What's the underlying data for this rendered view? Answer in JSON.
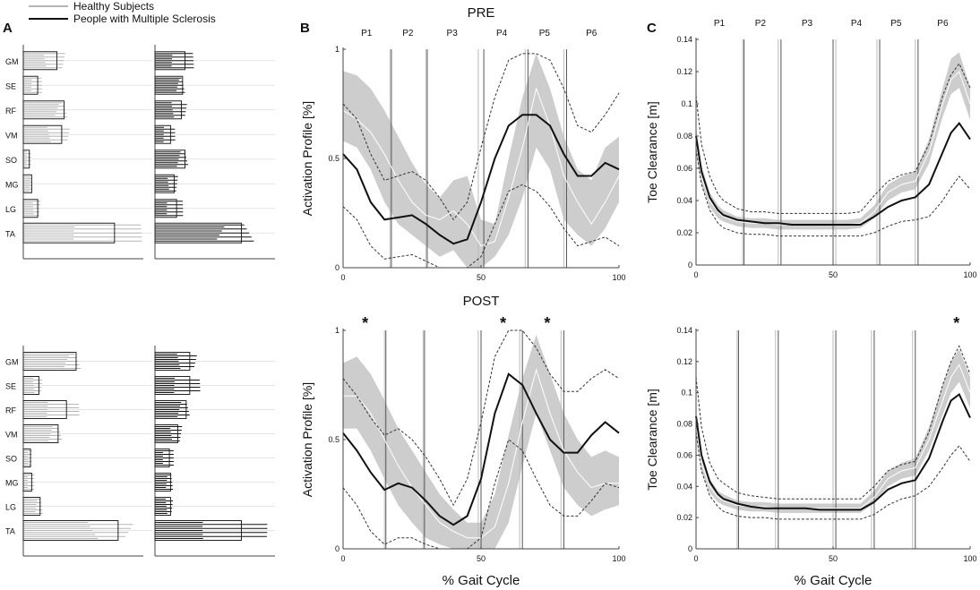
{
  "legend": {
    "healthy_label": "Healthy Subjects",
    "ms_label": "People with Multiple Sclerosis",
    "healthy_color": "#b5b5b5",
    "ms_color": "#111111"
  },
  "panel_letters": {
    "a": "A",
    "b": "B",
    "c": "C"
  },
  "chart_data": [
    {
      "type": "bar",
      "panel": "A-top",
      "description_label": "muscle synergy weights",
      "muscles": [
        "GM",
        "SE",
        "RF",
        "VM",
        "SO",
        "MG",
        "LG",
        "TA"
      ],
      "series": [
        {
          "name": "Healthy Subjects",
          "values": [
            0.28,
            0.12,
            0.34,
            0.32,
            0.05,
            0.07,
            0.12,
            0.76
          ]
        },
        {
          "name": "People with Multiple Sclerosis",
          "values": [
            0.25,
            0.23,
            0.22,
            0.13,
            0.25,
            0.16,
            0.18,
            0.72
          ]
        }
      ]
    },
    {
      "type": "bar",
      "panel": "A-bottom",
      "description_label": "muscle synergy weights",
      "muscles": [
        "GM",
        "SE",
        "RF",
        "VM",
        "SO",
        "MG",
        "LG",
        "TA"
      ],
      "series": [
        {
          "name": "Healthy Subjects",
          "values": [
            0.44,
            0.13,
            0.36,
            0.29,
            0.06,
            0.07,
            0.14,
            0.79
          ]
        },
        {
          "name": "People with Multiple Sclerosis",
          "values": [
            0.29,
            0.29,
            0.26,
            0.19,
            0.12,
            0.13,
            0.13,
            0.72
          ]
        }
      ]
    },
    {
      "type": "line",
      "panel": "B-PRE",
      "title": "PRE",
      "xlabel": "",
      "ylabel": "Activation Profile [%]",
      "xlim": [
        0,
        100
      ],
      "ylim": [
        0,
        1
      ],
      "xticks": [
        0,
        50,
        100
      ],
      "yticks": [
        0,
        0.5,
        1
      ],
      "phases": [
        "P1",
        "P2",
        "P3",
        "P4",
        "P5",
        "P6"
      ],
      "phase_boundaries_healthy": [
        17,
        30,
        49,
        66,
        80
      ],
      "phase_boundaries_ms": [
        17.5,
        30.5,
        51,
        67,
        81
      ],
      "x": [
        0,
        5,
        10,
        15,
        20,
        25,
        30,
        35,
        40,
        45,
        50,
        55,
        60,
        65,
        70,
        75,
        80,
        85,
        90,
        95,
        100
      ],
      "series": [
        {
          "name": "Healthy Subjects mean",
          "values": [
            0.72,
            0.68,
            0.62,
            0.52,
            0.4,
            0.3,
            0.24,
            0.22,
            0.26,
            0.2,
            0.1,
            0.12,
            0.32,
            0.55,
            0.82,
            0.65,
            0.42,
            0.3,
            0.2,
            0.3,
            0.42
          ]
        },
        {
          "name": "Healthy Subjects sd low",
          "values": [
            0.58,
            0.55,
            0.45,
            0.3,
            0.2,
            0.15,
            0.1,
            0.05,
            0.08,
            0.0,
            0.0,
            0.05,
            0.15,
            0.32,
            0.55,
            0.45,
            0.22,
            0.15,
            0.1,
            0.18,
            0.3
          ]
        },
        {
          "name": "Healthy Subjects sd high",
          "values": [
            0.9,
            0.88,
            0.82,
            0.72,
            0.6,
            0.48,
            0.38,
            0.32,
            0.4,
            0.42,
            0.22,
            0.2,
            0.5,
            0.78,
            0.98,
            0.82,
            0.6,
            0.45,
            0.4,
            0.55,
            0.6
          ]
        },
        {
          "name": "People with Multiple Sclerosis mean",
          "values": [
            0.52,
            0.45,
            0.3,
            0.22,
            0.23,
            0.24,
            0.2,
            0.15,
            0.11,
            0.13,
            0.3,
            0.5,
            0.65,
            0.7,
            0.7,
            0.65,
            0.52,
            0.42,
            0.42,
            0.48,
            0.45
          ]
        },
        {
          "name": "People with Multiple Sclerosis sd low",
          "values": [
            0.28,
            0.22,
            0.1,
            0.04,
            0.05,
            0.06,
            0.03,
            0.0,
            0.0,
            0.0,
            0.05,
            0.2,
            0.35,
            0.38,
            0.35,
            0.28,
            0.18,
            0.1,
            0.12,
            0.14,
            0.1
          ]
        },
        {
          "name": "People with Multiple Sclerosis sd high",
          "values": [
            0.75,
            0.68,
            0.52,
            0.4,
            0.42,
            0.44,
            0.4,
            0.32,
            0.22,
            0.3,
            0.55,
            0.78,
            0.95,
            0.98,
            0.98,
            0.95,
            0.82,
            0.65,
            0.62,
            0.7,
            0.8
          ]
        }
      ],
      "significance": []
    },
    {
      "type": "line",
      "panel": "B-POST",
      "title": "POST",
      "xlabel": "% Gait Cycle",
      "ylabel": "Activation Profile [%]",
      "xlim": [
        0,
        100
      ],
      "ylim": [
        0,
        1
      ],
      "xticks": [
        0,
        50,
        100
      ],
      "yticks": [
        0,
        0.5,
        1
      ],
      "phases": [],
      "phase_boundaries_healthy": [
        15,
        29,
        49,
        64,
        79
      ],
      "phase_boundaries_ms": [
        15.5,
        29.5,
        50,
        65,
        80
      ],
      "x": [
        0,
        5,
        10,
        15,
        20,
        25,
        30,
        35,
        40,
        45,
        50,
        55,
        60,
        65,
        70,
        75,
        80,
        85,
        90,
        95,
        100
      ],
      "series": [
        {
          "name": "Healthy Subjects mean",
          "values": [
            0.7,
            0.7,
            0.62,
            0.5,
            0.38,
            0.28,
            0.2,
            0.12,
            0.08,
            0.05,
            0.05,
            0.1,
            0.3,
            0.58,
            0.82,
            0.62,
            0.45,
            0.35,
            0.28,
            0.3,
            0.3
          ]
        },
        {
          "name": "Healthy Subjects sd low",
          "values": [
            0.55,
            0.55,
            0.45,
            0.32,
            0.2,
            0.12,
            0.05,
            0.02,
            0.0,
            0.0,
            0.0,
            0.0,
            0.12,
            0.38,
            0.62,
            0.45,
            0.28,
            0.2,
            0.15,
            0.18,
            0.2
          ]
        },
        {
          "name": "Healthy Subjects sd high",
          "values": [
            0.85,
            0.88,
            0.8,
            0.68,
            0.55,
            0.45,
            0.35,
            0.25,
            0.18,
            0.12,
            0.12,
            0.25,
            0.52,
            0.78,
            0.98,
            0.8,
            0.62,
            0.5,
            0.42,
            0.45,
            0.42
          ]
        },
        {
          "name": "People with Multiple Sclerosis mean",
          "values": [
            0.53,
            0.45,
            0.35,
            0.27,
            0.3,
            0.28,
            0.22,
            0.15,
            0.11,
            0.15,
            0.32,
            0.62,
            0.8,
            0.75,
            0.62,
            0.5,
            0.44,
            0.44,
            0.52,
            0.58,
            0.53
          ]
        },
        {
          "name": "People with Multiple Sclerosis sd low",
          "values": [
            0.28,
            0.2,
            0.08,
            0.02,
            0.05,
            0.05,
            0.02,
            0.0,
            0.0,
            0.0,
            0.05,
            0.3,
            0.5,
            0.45,
            0.32,
            0.2,
            0.15,
            0.15,
            0.22,
            0.3,
            0.28
          ]
        },
        {
          "name": "People with Multiple Sclerosis sd high",
          "values": [
            0.78,
            0.7,
            0.6,
            0.52,
            0.55,
            0.5,
            0.42,
            0.32,
            0.2,
            0.32,
            0.58,
            0.88,
            1.0,
            1.0,
            0.92,
            0.8,
            0.72,
            0.72,
            0.78,
            0.82,
            0.78
          ]
        }
      ],
      "significance": [
        8,
        58,
        74
      ]
    },
    {
      "type": "line",
      "panel": "C-PRE",
      "title": "",
      "xlabel": "",
      "ylabel": "Toe Clearance [m]",
      "xlim": [
        0,
        100
      ],
      "ylim": [
        0,
        0.14
      ],
      "xticks": [
        0,
        50,
        100
      ],
      "yticks": [
        0,
        0.02,
        0.04,
        0.06,
        0.08,
        0.1,
        0.12,
        0.14
      ],
      "phases": [
        "P1",
        "P2",
        "P3",
        "P4",
        "P5",
        "P6"
      ],
      "phase_boundaries_healthy": [
        17,
        30,
        51,
        66,
        80
      ],
      "phase_boundaries_ms": [
        17.5,
        31,
        50,
        67,
        81
      ],
      "x": [
        0,
        2,
        5,
        8,
        10,
        15,
        20,
        25,
        30,
        35,
        40,
        45,
        50,
        55,
        60,
        65,
        70,
        75,
        80,
        85,
        90,
        93,
        96,
        100
      ],
      "series": [
        {
          "name": "Healthy Subjects mean",
          "values": [
            0.075,
            0.055,
            0.04,
            0.033,
            0.03,
            0.027,
            0.026,
            0.026,
            0.025,
            0.025,
            0.025,
            0.025,
            0.025,
            0.025,
            0.026,
            0.033,
            0.045,
            0.05,
            0.052,
            0.07,
            0.1,
            0.115,
            0.12,
            0.1
          ]
        },
        {
          "name": "Healthy Subjects sd low",
          "values": [
            0.07,
            0.05,
            0.036,
            0.029,
            0.027,
            0.024,
            0.023,
            0.023,
            0.022,
            0.022,
            0.022,
            0.022,
            0.022,
            0.022,
            0.023,
            0.029,
            0.04,
            0.045,
            0.047,
            0.063,
            0.092,
            0.106,
            0.11,
            0.09
          ]
        },
        {
          "name": "Healthy Subjects sd high",
          "values": [
            0.085,
            0.062,
            0.045,
            0.037,
            0.034,
            0.03,
            0.029,
            0.029,
            0.028,
            0.028,
            0.028,
            0.028,
            0.028,
            0.028,
            0.029,
            0.037,
            0.05,
            0.055,
            0.058,
            0.078,
            0.11,
            0.128,
            0.132,
            0.11
          ]
        },
        {
          "name": "People with Multiple Sclerosis mean",
          "values": [
            0.08,
            0.058,
            0.042,
            0.034,
            0.031,
            0.028,
            0.027,
            0.026,
            0.026,
            0.025,
            0.025,
            0.025,
            0.025,
            0.025,
            0.025,
            0.03,
            0.036,
            0.04,
            0.042,
            0.05,
            0.07,
            0.082,
            0.088,
            0.078
          ]
        },
        {
          "name": "People with Multiple Sclerosis sd low",
          "values": [
            0.072,
            0.05,
            0.034,
            0.026,
            0.023,
            0.02,
            0.019,
            0.019,
            0.018,
            0.018,
            0.018,
            0.018,
            0.018,
            0.018,
            0.018,
            0.02,
            0.024,
            0.027,
            0.028,
            0.03,
            0.04,
            0.048,
            0.055,
            0.047
          ]
        },
        {
          "name": "People with Multiple Sclerosis sd high",
          "values": [
            0.105,
            0.075,
            0.055,
            0.044,
            0.04,
            0.035,
            0.033,
            0.033,
            0.032,
            0.032,
            0.032,
            0.032,
            0.032,
            0.032,
            0.033,
            0.043,
            0.052,
            0.056,
            0.058,
            0.075,
            0.105,
            0.118,
            0.125,
            0.11
          ]
        }
      ],
      "significance": []
    },
    {
      "type": "line",
      "panel": "C-POST",
      "title": "",
      "xlabel": "% Gait Cycle",
      "ylabel": "Toe Clearance [m]",
      "xlim": [
        0,
        100
      ],
      "ylim": [
        0,
        0.14
      ],
      "xticks": [
        0,
        50,
        100
      ],
      "yticks": [
        0,
        0.02,
        0.04,
        0.06,
        0.08,
        0.1,
        0.12,
        0.14
      ],
      "phases": [],
      "phase_boundaries_healthy": [
        15,
        29,
        50,
        64,
        79
      ],
      "phase_boundaries_ms": [
        15.5,
        30,
        51,
        65,
        80
      ],
      "x": [
        0,
        2,
        5,
        8,
        10,
        15,
        20,
        25,
        30,
        35,
        40,
        45,
        50,
        55,
        60,
        65,
        70,
        75,
        80,
        85,
        90,
        93,
        96,
        100
      ],
      "series": [
        {
          "name": "Healthy Subjects mean",
          "values": [
            0.078,
            0.055,
            0.04,
            0.033,
            0.031,
            0.028,
            0.027,
            0.027,
            0.026,
            0.026,
            0.026,
            0.026,
            0.026,
            0.026,
            0.026,
            0.033,
            0.045,
            0.05,
            0.052,
            0.07,
            0.095,
            0.11,
            0.118,
            0.1
          ]
        },
        {
          "name": "Healthy Subjects sd low",
          "values": [
            0.072,
            0.05,
            0.036,
            0.03,
            0.028,
            0.025,
            0.024,
            0.024,
            0.023,
            0.023,
            0.023,
            0.023,
            0.023,
            0.023,
            0.023,
            0.029,
            0.04,
            0.045,
            0.047,
            0.063,
            0.086,
            0.1,
            0.107,
            0.09
          ]
        },
        {
          "name": "Healthy Subjects sd high",
          "values": [
            0.085,
            0.06,
            0.045,
            0.037,
            0.035,
            0.031,
            0.03,
            0.03,
            0.029,
            0.029,
            0.029,
            0.029,
            0.029,
            0.029,
            0.029,
            0.037,
            0.05,
            0.055,
            0.058,
            0.078,
            0.105,
            0.12,
            0.128,
            0.11
          ]
        },
        {
          "name": "People with Multiple Sclerosis mean",
          "values": [
            0.085,
            0.06,
            0.043,
            0.035,
            0.032,
            0.029,
            0.027,
            0.026,
            0.026,
            0.026,
            0.026,
            0.025,
            0.025,
            0.025,
            0.025,
            0.03,
            0.038,
            0.042,
            0.044,
            0.058,
            0.082,
            0.095,
            0.099,
            0.084
          ]
        },
        {
          "name": "People with Multiple Sclerosis sd low",
          "values": [
            0.075,
            0.05,
            0.034,
            0.027,
            0.024,
            0.021,
            0.02,
            0.02,
            0.019,
            0.019,
            0.019,
            0.019,
            0.019,
            0.019,
            0.019,
            0.022,
            0.028,
            0.032,
            0.034,
            0.04,
            0.052,
            0.06,
            0.066,
            0.056
          ]
        },
        {
          "name": "People with Multiple Sclerosis sd high",
          "values": [
            0.11,
            0.078,
            0.055,
            0.045,
            0.042,
            0.036,
            0.034,
            0.033,
            0.032,
            0.032,
            0.032,
            0.032,
            0.032,
            0.032,
            0.032,
            0.04,
            0.05,
            0.054,
            0.056,
            0.075,
            0.105,
            0.12,
            0.13,
            0.112
          ]
        }
      ],
      "significance": [
        95
      ]
    }
  ]
}
